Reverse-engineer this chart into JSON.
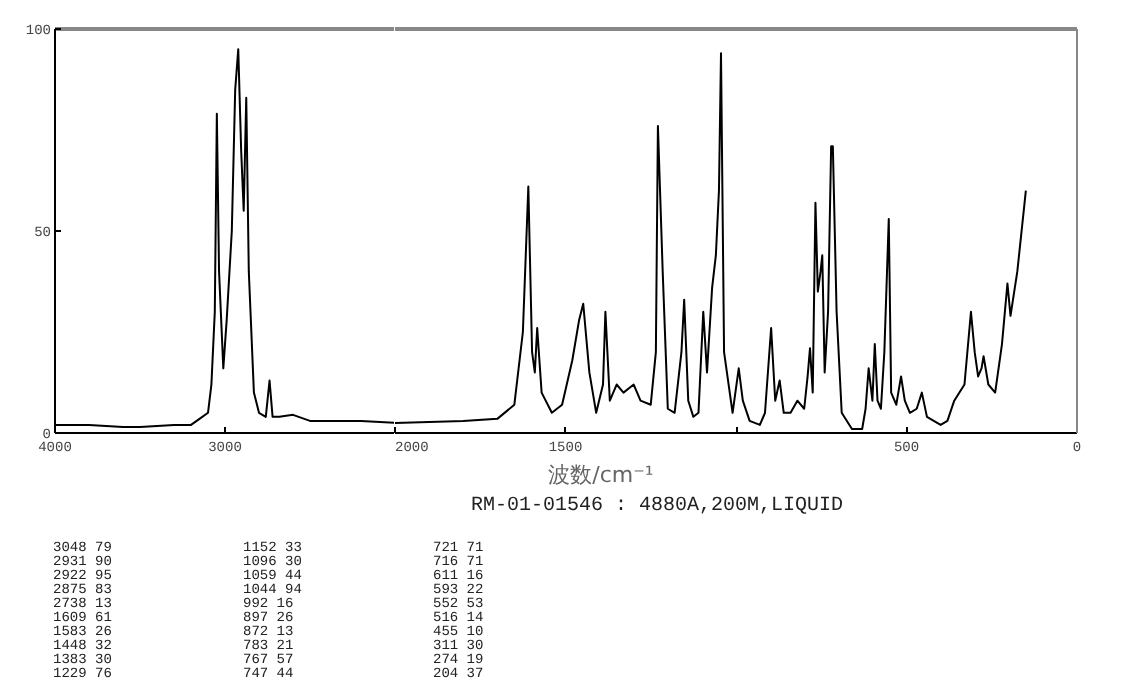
{
  "chart_data": [
    {
      "type": "line",
      "xlim": [
        4000,
        2000
      ],
      "ylim": [
        0,
        100
      ],
      "xticks": [
        4000,
        3000
      ],
      "yticks": [
        0,
        50,
        100
      ],
      "grid": false,
      "marker": "none",
      "line_style": "solid",
      "series": [
        {
          "color": "#000000",
          "x": [
            4000,
            3800,
            3600,
            3500,
            3300,
            3200,
            3150,
            3100,
            3080,
            3060,
            3048,
            3035,
            3010,
            2990,
            2960,
            2940,
            2931,
            2922,
            2905,
            2890,
            2875,
            2860,
            2830,
            2800,
            2760,
            2738,
            2720,
            2680,
            2600,
            2500,
            2300,
            2200,
            2000
          ],
          "values": [
            2,
            2,
            1.5,
            1.5,
            2,
            2,
            3.5,
            5,
            12,
            30,
            79,
            40,
            16,
            28,
            50,
            85,
            90,
            95,
            70,
            55,
            83,
            40,
            10,
            5,
            4,
            13,
            4,
            4,
            4.5,
            3,
            3,
            3,
            2.5
          ]
        }
      ]
    },
    {
      "type": "line",
      "subtitle": "RM-01-01546 : 4880A,200M,LIQUID",
      "xlabel": "波数/cm⁻¹",
      "xlim": [
        2000,
        0
      ],
      "ylim": [
        0,
        100
      ],
      "xticks": [
        2000,
        1500,
        {
          "value": 1000,
          "label": null
        },
        500,
        0
      ],
      "tick_labels": "x",
      "grid": false,
      "marker": "none",
      "line_style": "solid",
      "series": [
        {
          "color": "#000000",
          "x": [
            2000,
            1800,
            1700,
            1650,
            1625,
            1609,
            1598,
            1590,
            1583,
            1570,
            1540,
            1510,
            1480,
            1460,
            1448,
            1430,
            1410,
            1390,
            1383,
            1370,
            1350,
            1330,
            1300,
            1280,
            1250,
            1235,
            1229,
            1215,
            1200,
            1180,
            1160,
            1152,
            1140,
            1125,
            1110,
            1096,
            1085,
            1070,
            1059,
            1050,
            1044,
            1035,
            1010,
            992,
            980,
            960,
            930,
            915,
            897,
            885,
            872,
            860,
            840,
            820,
            800,
            790,
            783,
            775,
            767,
            760,
            752,
            747,
            740,
            730,
            721,
            716,
            705,
            690,
            660,
            630,
            620,
            611,
            600,
            593,
            585,
            575,
            565,
            552,
            545,
            530,
            516,
            505,
            490,
            470,
            455,
            440,
            420,
            400,
            380,
            360,
            330,
            311,
            300,
            290,
            280,
            274,
            260,
            240,
            220,
            204,
            195,
            175,
            150
          ],
          "values": [
            2.5,
            3,
            3.5,
            7,
            25,
            61,
            20,
            15,
            26,
            10,
            5,
            7,
            18,
            28,
            32,
            15,
            5,
            12,
            30,
            8,
            12,
            10,
            12,
            8,
            7,
            20,
            76,
            40,
            6,
            5,
            20,
            33,
            8,
            4,
            5,
            30,
            15,
            36,
            44,
            60,
            94,
            20,
            5,
            16,
            8,
            3,
            2,
            5,
            26,
            8,
            13,
            5,
            5,
            8,
            6,
            14,
            21,
            10,
            57,
            35,
            40,
            44,
            15,
            30,
            71,
            71,
            30,
            5,
            1,
            1,
            6,
            16,
            8,
            22,
            8,
            6,
            20,
            53,
            10,
            7,
            14,
            8,
            5,
            6,
            10,
            4,
            3,
            2,
            3,
            8,
            12,
            30,
            20,
            14,
            16,
            19,
            12,
            10,
            22,
            37,
            29,
            40,
            60
          ]
        }
      ],
      "annotations": [
        "3048  79",
        "2931  90",
        "2922  95",
        "2875  83",
        "2738  13",
        "1609  61",
        "1583  26",
        "1448  32",
        "1383  30",
        "1229  76",
        "1152  33",
        "1096  30",
        "1059  44",
        "1044  94",
        " 992  16",
        " 897  26",
        " 872  13",
        " 783  21",
        " 767  57",
        " 747  44",
        " 721  71",
        " 716  71",
        " 611  16",
        " 593  22",
        " 552  53",
        " 516  14",
        " 455  10",
        " 311  30",
        " 274  19",
        " 204  37"
      ]
    }
  ]
}
